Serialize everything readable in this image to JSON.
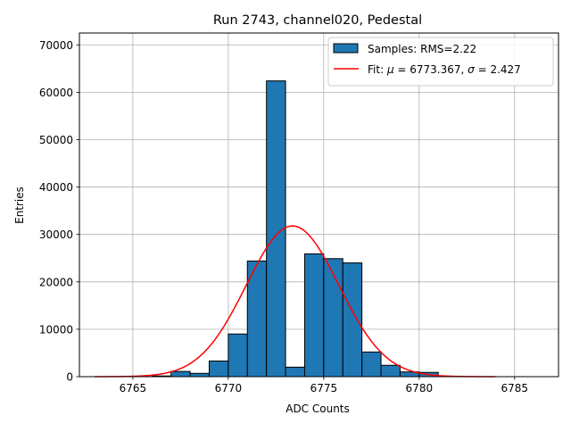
{
  "chart_data": {
    "type": "bar",
    "title": "Run 2743, channel020, Pedestal",
    "xlabel": "ADC Counts",
    "ylabel": "Entries",
    "xlim": [
      6762.2,
      6787.3
    ],
    "ylim": [
      0,
      72500
    ],
    "grid": true,
    "legend_placement": "top-right",
    "xticks": [
      6765,
      6770,
      6775,
      6780,
      6785
    ],
    "yticks": [
      0,
      10000,
      20000,
      30000,
      40000,
      50000,
      60000,
      70000
    ],
    "bar_color": "#1f77b4",
    "fit_color": "#ff0000",
    "histogram": {
      "name": "Samples: RMS=2.22",
      "bins": [
        {
          "x0": 6766,
          "x1": 6767,
          "count": 150
        },
        {
          "x0": 6767,
          "x1": 6768,
          "count": 1100
        },
        {
          "x0": 6768,
          "x1": 6769,
          "count": 700
        },
        {
          "x0": 6769,
          "x1": 6770,
          "count": 3300
        },
        {
          "x0": 6770,
          "x1": 6771,
          "count": 9000
        },
        {
          "x0": 6771,
          "x1": 6772,
          "count": 24400
        },
        {
          "x0": 6772,
          "x1": 6773,
          "count": 62400
        },
        {
          "x0": 6773,
          "x1": 6774,
          "count": 2000
        },
        {
          "x0": 6774,
          "x1": 6775,
          "count": 25900
        },
        {
          "x0": 6775,
          "x1": 6776,
          "count": 24900
        },
        {
          "x0": 6776,
          "x1": 6777,
          "count": 24000
        },
        {
          "x0": 6777,
          "x1": 6778,
          "count": 5200
        },
        {
          "x0": 6778,
          "x1": 6779,
          "count": 2400
        },
        {
          "x0": 6779,
          "x1": 6780,
          "count": 1000
        },
        {
          "x0": 6780,
          "x1": 6781,
          "count": 900
        }
      ]
    },
    "fit": {
      "name_prefix": "Fit: ",
      "mu": 6773.367,
      "sigma": 2.427,
      "amplitude": 31800,
      "x_range": [
        6763,
        6784
      ]
    }
  }
}
